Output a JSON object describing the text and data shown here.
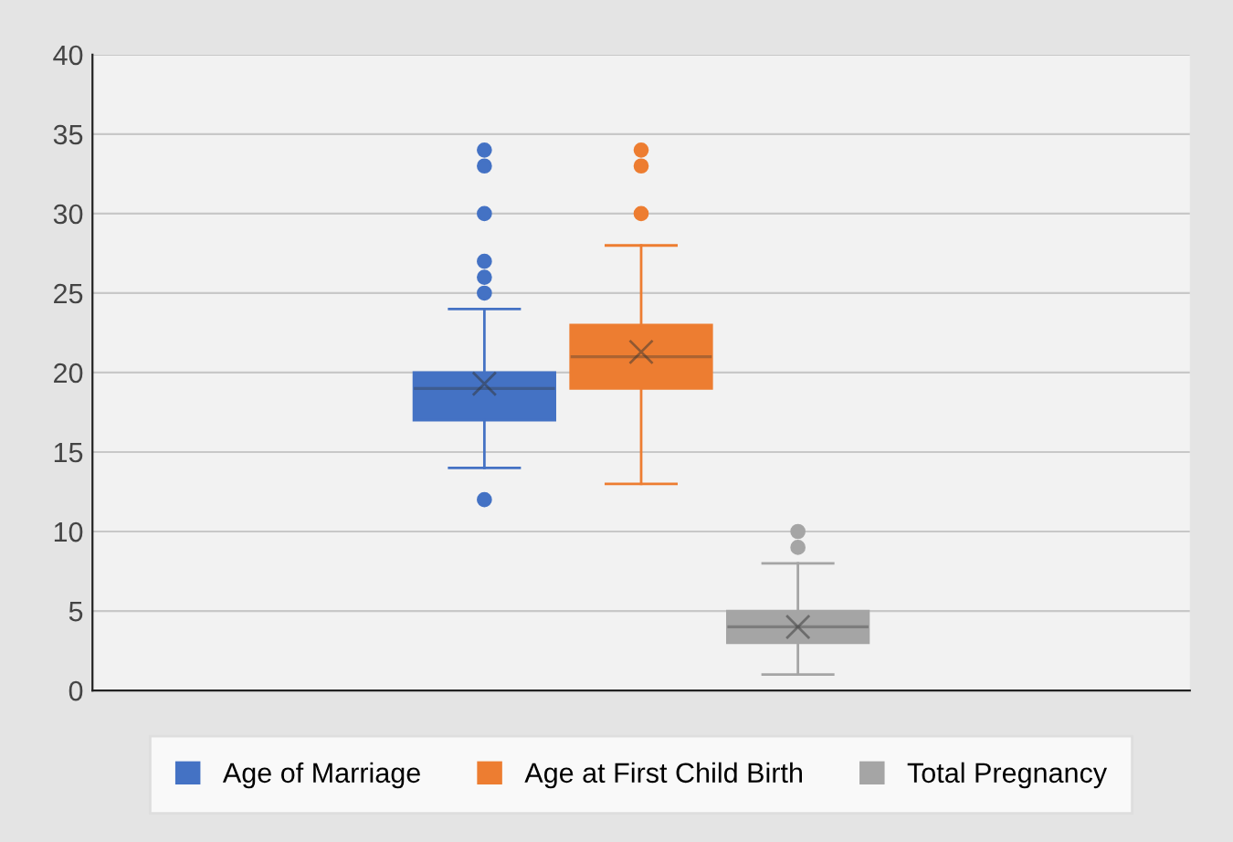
{
  "chart_data": {
    "type": "box",
    "categories": [
      null
    ],
    "series": [
      {
        "name": "Age of Marriage",
        "color": "#4472c4",
        "boxes": [
          {
            "low": 14,
            "q1": 17,
            "median": 19,
            "q3": 20,
            "high": 24,
            "mean": 19.3,
            "outliers": [
              12,
              25,
              26,
              27,
              30,
              33,
              34
            ]
          }
        ]
      },
      {
        "name": "Age at First Child Birth",
        "color": "#ed7d31",
        "boxes": [
          {
            "low": 13,
            "q1": 19,
            "median": 21,
            "q3": 23,
            "high": 28,
            "mean": 21.3,
            "outliers": [
              30,
              33,
              34
            ]
          }
        ]
      },
      {
        "name": "Total Pregnancy",
        "color": "#a5a5a5",
        "boxes": [
          {
            "low": 1,
            "q1": 3,
            "median": 4,
            "q3": 5,
            "high": 8,
            "mean": 4,
            "outliers": [
              9,
              10
            ]
          }
        ]
      }
    ],
    "ylim": [
      0,
      40
    ],
    "yticks": [
      0,
      5,
      10,
      15,
      20,
      25,
      30,
      35,
      40
    ],
    "grid": "y",
    "legend": "bottom",
    "tick_labels": "y"
  }
}
